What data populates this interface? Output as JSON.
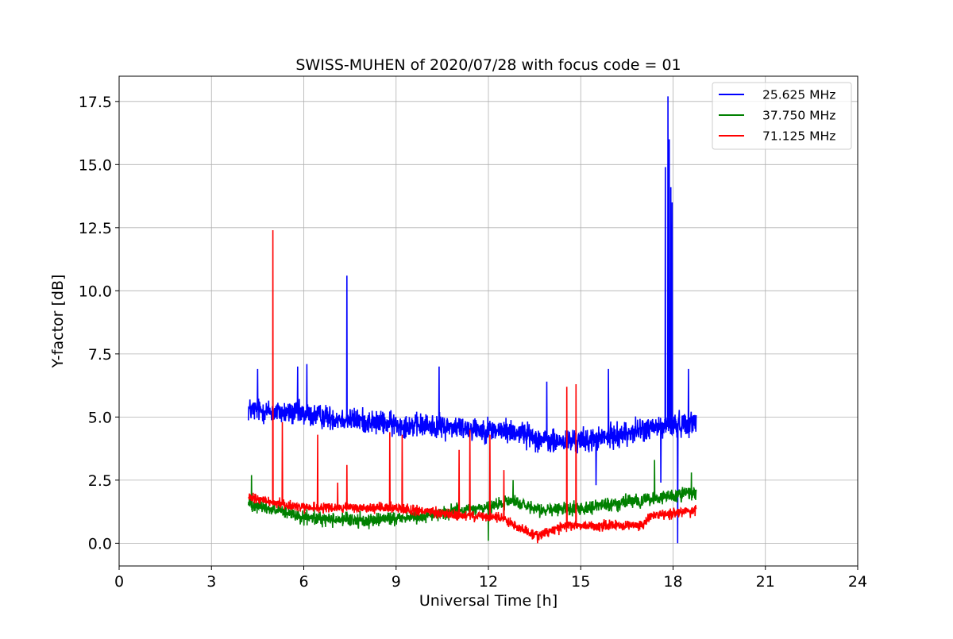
{
  "chart_data": {
    "type": "line",
    "title": "SWISS-MUHEN of 2020/07/28 with focus code = 01",
    "xlabel": "Universal Time [h]",
    "ylabel": "Y-factor [dB]",
    "xlim": [
      0,
      24
    ],
    "ylim": [
      -0.9,
      18.5
    ],
    "xticks": [
      0,
      3,
      6,
      9,
      12,
      15,
      18,
      21,
      24
    ],
    "xtick_labels": [
      "0",
      "3",
      "6",
      "9",
      "12",
      "15",
      "18",
      "21",
      "24"
    ],
    "yticks": [
      0,
      2.5,
      5,
      7.5,
      10,
      12.5,
      15,
      17.5
    ],
    "ytick_labels": [
      "0.0",
      "2.5",
      "5.0",
      "7.5",
      "10.0",
      "12.5",
      "15.0",
      "17.5"
    ],
    "grid": true,
    "legend_position": "top-right",
    "x_range_of_data": [
      4.2,
      18.75
    ],
    "series": [
      {
        "name": "25.625 MHz",
        "color": "#0000ff",
        "baseline": [
          [
            4.2,
            5.3
          ],
          [
            6,
            5.1
          ],
          [
            9,
            4.7
          ],
          [
            11,
            4.6
          ],
          [
            13,
            4.4
          ],
          [
            14,
            4.0
          ],
          [
            15.5,
            4.1
          ],
          [
            17,
            4.5
          ],
          [
            18.75,
            4.8
          ]
        ],
        "noise_amplitude": 0.7,
        "spikes": [
          [
            4.5,
            6.9
          ],
          [
            5.8,
            7.0
          ],
          [
            6.1,
            7.1
          ],
          [
            7.4,
            10.6
          ],
          [
            10.4,
            7.0
          ],
          [
            13.9,
            6.4
          ],
          [
            15.9,
            6.9
          ],
          [
            17.75,
            14.9
          ],
          [
            17.83,
            17.7
          ],
          [
            17.88,
            16.0
          ],
          [
            17.93,
            14.1
          ],
          [
            17.97,
            13.5
          ],
          [
            18.5,
            6.9
          ]
        ],
        "dips": [
          [
            15.5,
            2.3
          ],
          [
            17.6,
            2.4
          ],
          [
            18.15,
            0.0
          ]
        ]
      },
      {
        "name": "37.750 MHz",
        "color": "#008000",
        "baseline": [
          [
            4.2,
            1.6
          ],
          [
            6,
            1.0
          ],
          [
            8,
            0.9
          ],
          [
            10,
            1.1
          ],
          [
            11,
            1.3
          ],
          [
            12,
            1.4
          ],
          [
            12.8,
            1.7
          ],
          [
            13.5,
            1.3
          ],
          [
            15,
            1.4
          ],
          [
            17,
            1.7
          ],
          [
            18.75,
            2.0
          ]
        ],
        "noise_amplitude": 0.4,
        "spikes": [
          [
            4.3,
            2.7
          ],
          [
            12.8,
            2.5
          ],
          [
            17.4,
            3.3
          ],
          [
            18.6,
            2.8
          ]
        ],
        "dips": [
          [
            12.0,
            0.1
          ]
        ]
      },
      {
        "name": "71.125 MHz",
        "color": "#ff0000",
        "baseline": [
          [
            4.2,
            1.8
          ],
          [
            6,
            1.4
          ],
          [
            9,
            1.4
          ],
          [
            11,
            1.1
          ],
          [
            12.5,
            1.0
          ],
          [
            13,
            0.6
          ],
          [
            13.6,
            0.3
          ],
          [
            14.5,
            0.7
          ],
          [
            17,
            0.7
          ],
          [
            17.3,
            1.1
          ],
          [
            18.75,
            1.3
          ]
        ],
        "noise_amplitude": 0.3,
        "spikes": [
          [
            5.0,
            12.4
          ],
          [
            5.3,
            4.8
          ],
          [
            6.45,
            4.3
          ],
          [
            7.1,
            2.4
          ],
          [
            7.4,
            3.1
          ],
          [
            8.8,
            4.4
          ],
          [
            9.2,
            4.3
          ],
          [
            11.05,
            3.7
          ],
          [
            11.4,
            4.5
          ],
          [
            12.05,
            4.3
          ],
          [
            12.5,
            2.9
          ],
          [
            14.55,
            6.2
          ],
          [
            14.85,
            6.3
          ]
        ],
        "dips": [
          [
            13.6,
            0.0
          ]
        ]
      }
    ]
  }
}
